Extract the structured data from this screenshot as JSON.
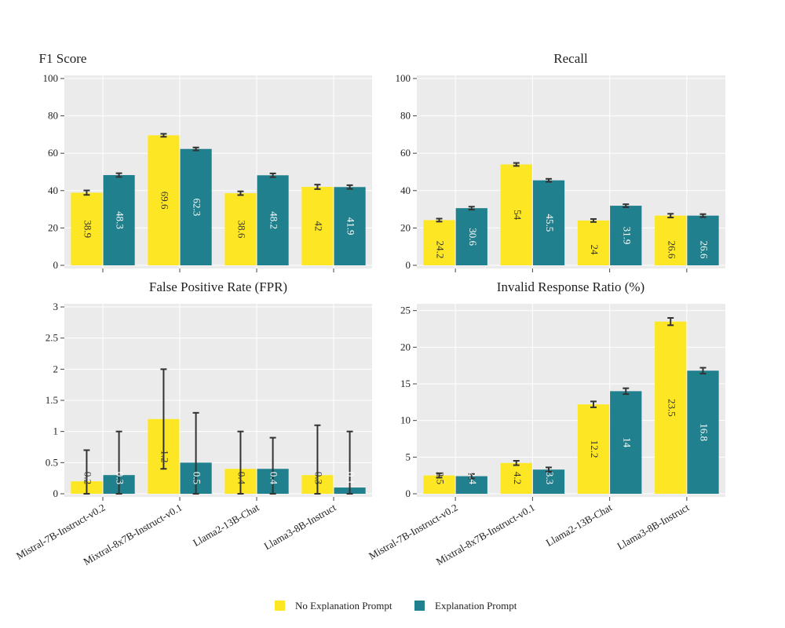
{
  "colors": {
    "no_explanation": "#fde725",
    "explanation": "#21808d",
    "panel_bg": "#ebebeb",
    "grid": "#ffffff",
    "error_bar": "#333333"
  },
  "legend": {
    "no_explanation": "No Explanation Prompt",
    "explanation": "Explanation Prompt"
  },
  "chart_data": [
    {
      "type": "bar",
      "title": "F1 Score",
      "categories": [
        "Mistral-7B-Instruct-v0.2",
        "Mixtral-8x7B-Instruct-v0.1",
        "Llama2-13B-Chat",
        "Llama3-8B-Instruct"
      ],
      "series": [
        {
          "name": "No Explanation Prompt",
          "values": [
            38.9,
            69.6,
            38.6,
            42
          ],
          "labels": [
            "38.9",
            "69.6",
            "38.6",
            "42"
          ],
          "errors": [
            1.2,
            0.8,
            1.0,
            1.2
          ]
        },
        {
          "name": "Explanation Prompt",
          "values": [
            48.3,
            62.3,
            48.2,
            41.9
          ],
          "labels": [
            "48.3",
            "62.3",
            "48.2",
            "41.9"
          ],
          "errors": [
            1.0,
            0.8,
            1.0,
            1.0
          ]
        }
      ],
      "ylim": [
        0,
        100
      ],
      "yticks": [
        0,
        20,
        40,
        60,
        80,
        100
      ],
      "ytick_labels": [
        "0",
        "20",
        "40",
        "60",
        "80",
        "100"
      ],
      "show_category_labels": false
    },
    {
      "type": "bar",
      "title": "Recall",
      "categories": [
        "Mistral-7B-Instruct-v0.2",
        "Mixtral-8x7B-Instruct-v0.1",
        "Llama2-13B-Chat",
        "Llama3-8B-Instruct"
      ],
      "series": [
        {
          "name": "No Explanation Prompt",
          "values": [
            24.2,
            54,
            24,
            26.6
          ],
          "labels": [
            "24.2",
            "54",
            "24",
            "26.6"
          ],
          "errors": [
            0.8,
            0.8,
            0.8,
            1.0
          ]
        },
        {
          "name": "Explanation Prompt",
          "values": [
            30.6,
            45.5,
            31.9,
            26.6
          ],
          "labels": [
            "30.6",
            "45.5",
            "31.9",
            "26.6"
          ],
          "errors": [
            0.8,
            0.8,
            0.8,
            0.8
          ]
        }
      ],
      "ylim": [
        0,
        100
      ],
      "yticks": [
        0,
        20,
        40,
        60,
        80,
        100
      ],
      "ytick_labels": [
        "0",
        "20",
        "40",
        "60",
        "80",
        "100"
      ],
      "show_category_labels": false
    },
    {
      "type": "bar",
      "title": "False Positive Rate (FPR)",
      "categories": [
        "Mistral-7B-Instruct-v0.2",
        "Mixtral-8x7B-Instruct-v0.1",
        "Llama2-13B-Chat",
        "Llama3-8B-Instruct"
      ],
      "series": [
        {
          "name": "No Explanation Prompt",
          "values": [
            0.2,
            1.2,
            0.4,
            0.3
          ],
          "labels": [
            "0.2",
            "1.2",
            "0.4",
            "0.3"
          ],
          "errors": [
            0.5,
            0.8,
            0.6,
            0.8
          ]
        },
        {
          "name": "Explanation Prompt",
          "values": [
            0.3,
            0.5,
            0.4,
            0.1
          ],
          "labels": [
            "0.3",
            "0.5",
            "0.4",
            "0.1"
          ],
          "errors": [
            0.7,
            0.8,
            0.5,
            0.9
          ]
        }
      ],
      "ylim": [
        0,
        3
      ],
      "yticks": [
        0,
        0.5,
        1,
        1.5,
        2,
        2.5,
        3
      ],
      "ytick_labels": [
        "0",
        "0.5",
        "1",
        "1.5",
        "2",
        "2.5",
        "3"
      ],
      "show_category_labels": true
    },
    {
      "type": "bar",
      "title": "Invalid Response Ratio (%)",
      "categories": [
        "Mistral-7B-Instruct-v0.2",
        "Mixtral-8x7B-Instruct-v0.1",
        "Llama2-13B-Chat",
        "Llama3-8B-Instruct"
      ],
      "series": [
        {
          "name": "No Explanation Prompt",
          "values": [
            2.5,
            4.2,
            12.2,
            23.5
          ],
          "labels": [
            "2.5",
            "4.2",
            "12.2",
            "23.5"
          ],
          "errors": [
            0.3,
            0.3,
            0.4,
            0.5
          ]
        },
        {
          "name": "Explanation Prompt",
          "values": [
            2.4,
            3.3,
            14,
            16.8
          ],
          "labels": [
            "2.4",
            "3.3",
            "14",
            "16.8"
          ],
          "errors": [
            0.3,
            0.3,
            0.4,
            0.4
          ]
        }
      ],
      "ylim": [
        0,
        25.5
      ],
      "yticks": [
        0,
        5,
        10,
        15,
        20,
        25
      ],
      "ytick_labels": [
        "0",
        "5",
        "10",
        "15",
        "20",
        "25"
      ],
      "show_category_labels": true
    }
  ]
}
